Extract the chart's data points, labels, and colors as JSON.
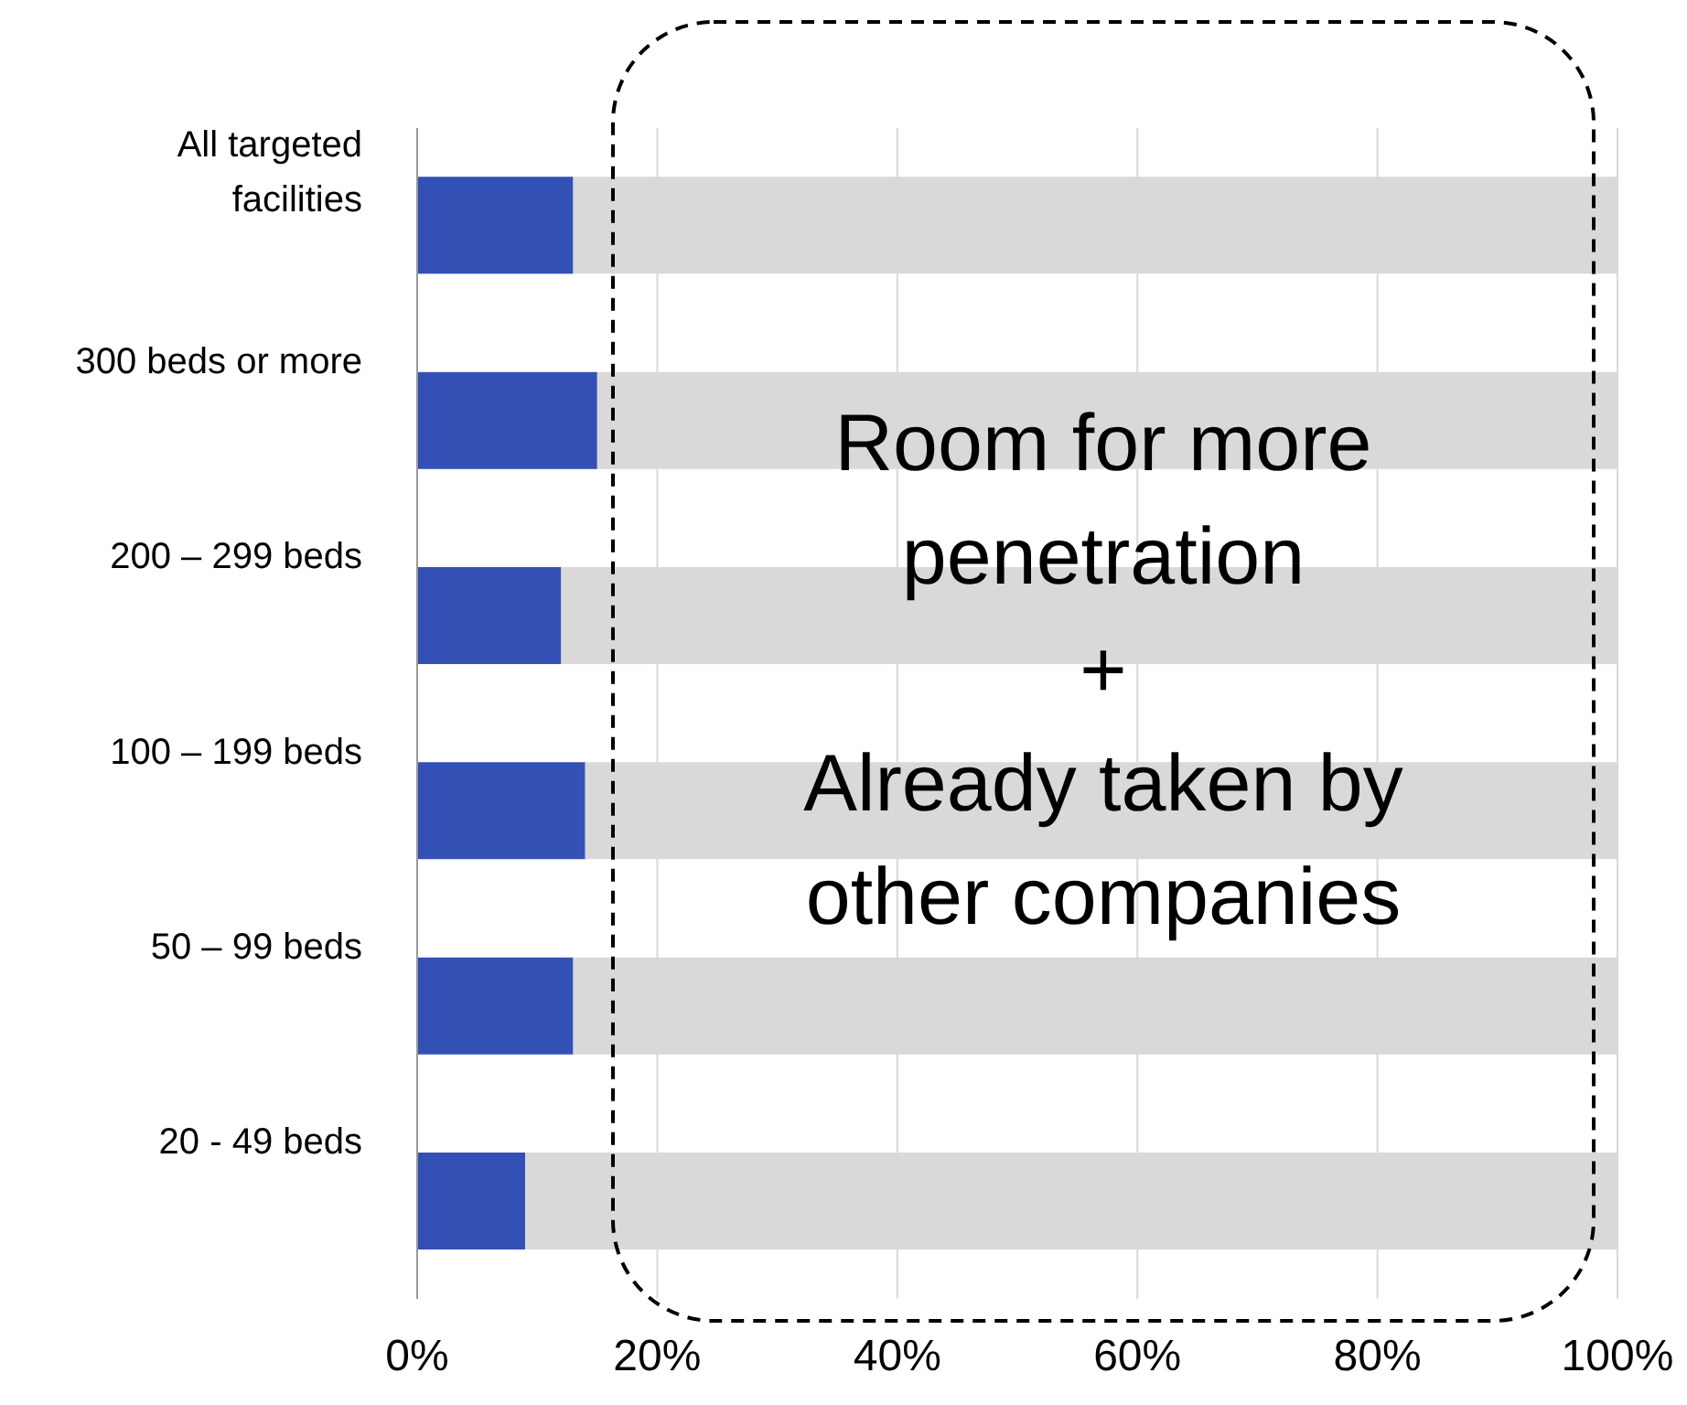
{
  "chart_data": {
    "type": "bar",
    "orientation": "horizontal",
    "stacked": true,
    "categories": [
      "All targeted facilities",
      "300 beds or more",
      "200 – 299 beds",
      "100 – 199 beds",
      "50 – 99 beds",
      "20 - 49 beds"
    ],
    "series": [
      {
        "color": "#3350b4",
        "values": [
          13,
          15,
          12,
          14,
          13,
          9
        ]
      },
      {
        "color": "#d9d9d9",
        "values": [
          87,
          85,
          88,
          86,
          87,
          91
        ]
      }
    ],
    "xlim": [
      0,
      100
    ],
    "xticks": [
      {
        "value": 0,
        "label": "0%"
      },
      {
        "value": 20,
        "label": "20%"
      },
      {
        "value": 40,
        "label": "40%"
      },
      {
        "value": 60,
        "label": "60%"
      },
      {
        "value": 80,
        "label": "80%"
      },
      {
        "value": 100,
        "label": "100%"
      }
    ],
    "grid": "x",
    "annotations": [
      "Room for more\npenetration\n+\nAlready taken by\nother companies"
    ]
  }
}
